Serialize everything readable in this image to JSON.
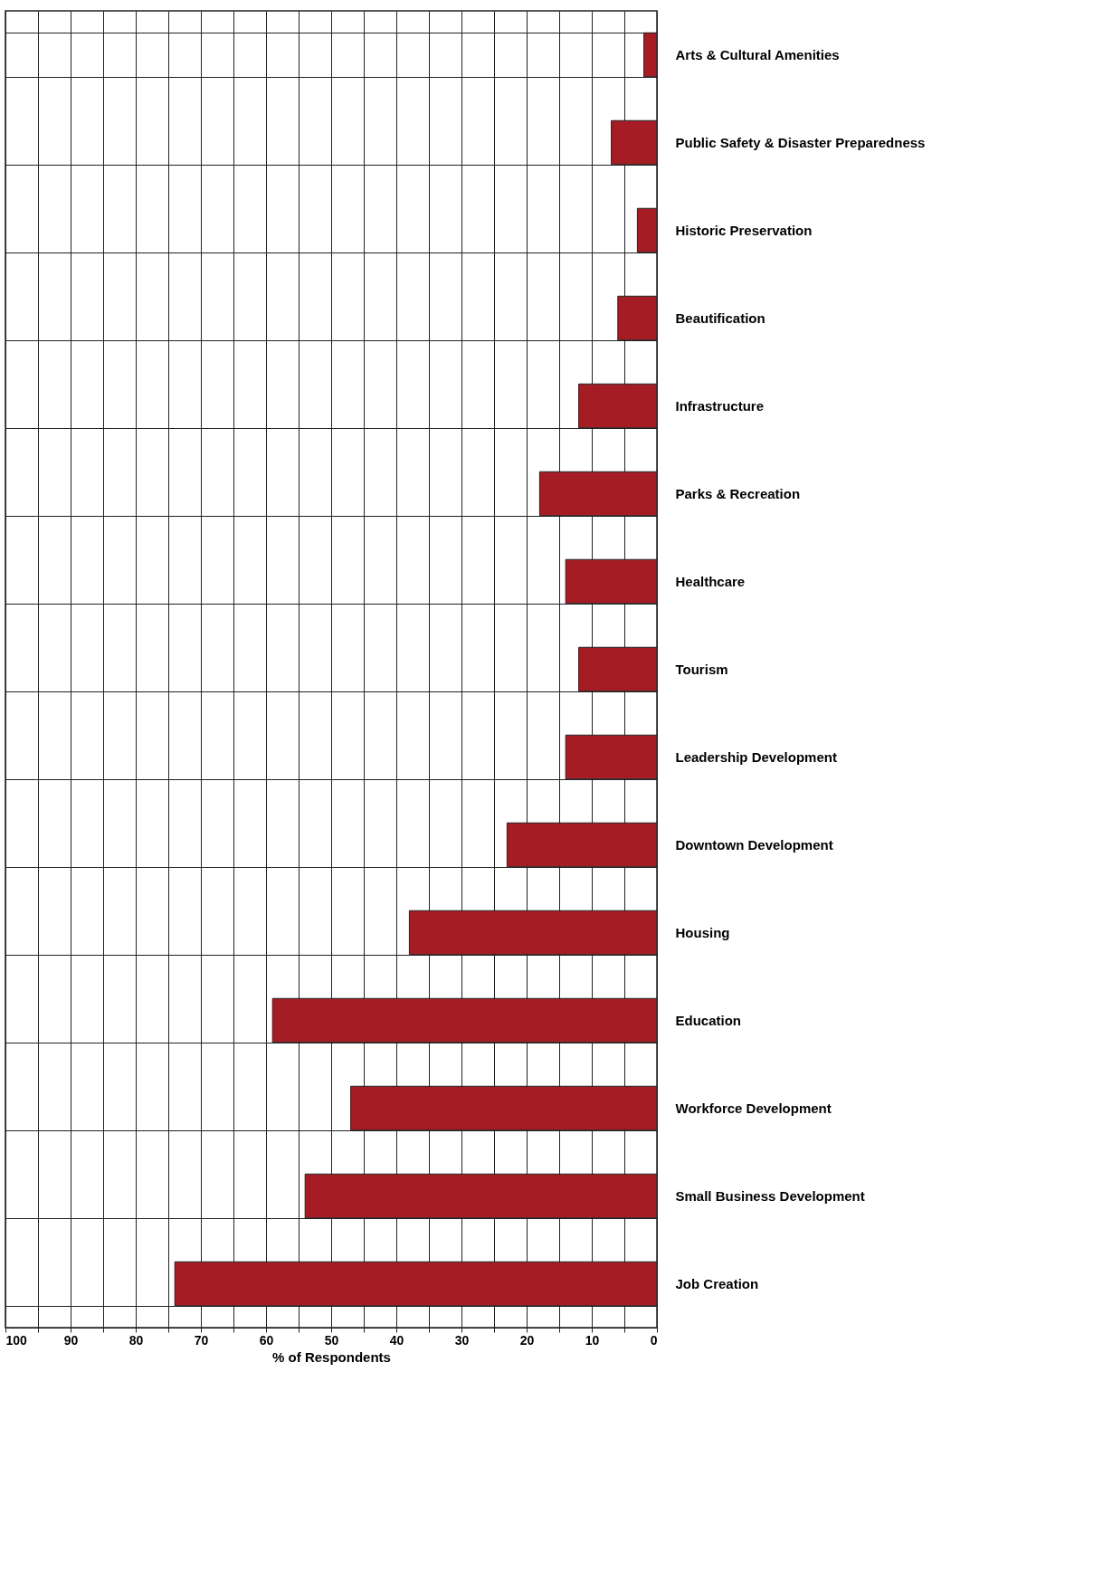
{
  "chart_data": {
    "type": "bar",
    "orientation": "horizontal",
    "xlabel": "% of Respondents",
    "categories": [
      "Arts & Cultural Amenities",
      "Public Safety & Disaster Preparedness",
      "Historic Preservation",
      "Beautification",
      "Infrastructure",
      "Parks & Recreation",
      "Healthcare",
      "Tourism",
      "Leadership Development",
      "Downtown Development",
      "Housing",
      "Education",
      "Workforce Development",
      "Small Business Development",
      "Job Creation"
    ],
    "values": [
      2,
      7,
      3,
      6,
      12,
      18,
      14,
      12,
      14,
      23,
      38,
      59,
      47,
      54,
      74
    ],
    "color": "#a51c24",
    "xlim": [
      100,
      0
    ],
    "xticks": [
      100,
      {
        "value": 95,
        "label": null
      },
      90,
      {
        "value": 85,
        "label": null
      },
      80,
      {
        "value": 75,
        "label": null
      },
      70,
      {
        "value": 65,
        "label": null
      },
      60,
      {
        "value": 55,
        "label": null
      },
      50,
      {
        "value": 45,
        "label": null
      },
      40,
      {
        "value": 35,
        "label": null
      },
      30,
      {
        "value": 25,
        "label": null
      },
      20,
      {
        "value": 15,
        "label": null
      },
      10,
      {
        "value": 5,
        "label": null
      },
      0
    ],
    "grid": true
  }
}
